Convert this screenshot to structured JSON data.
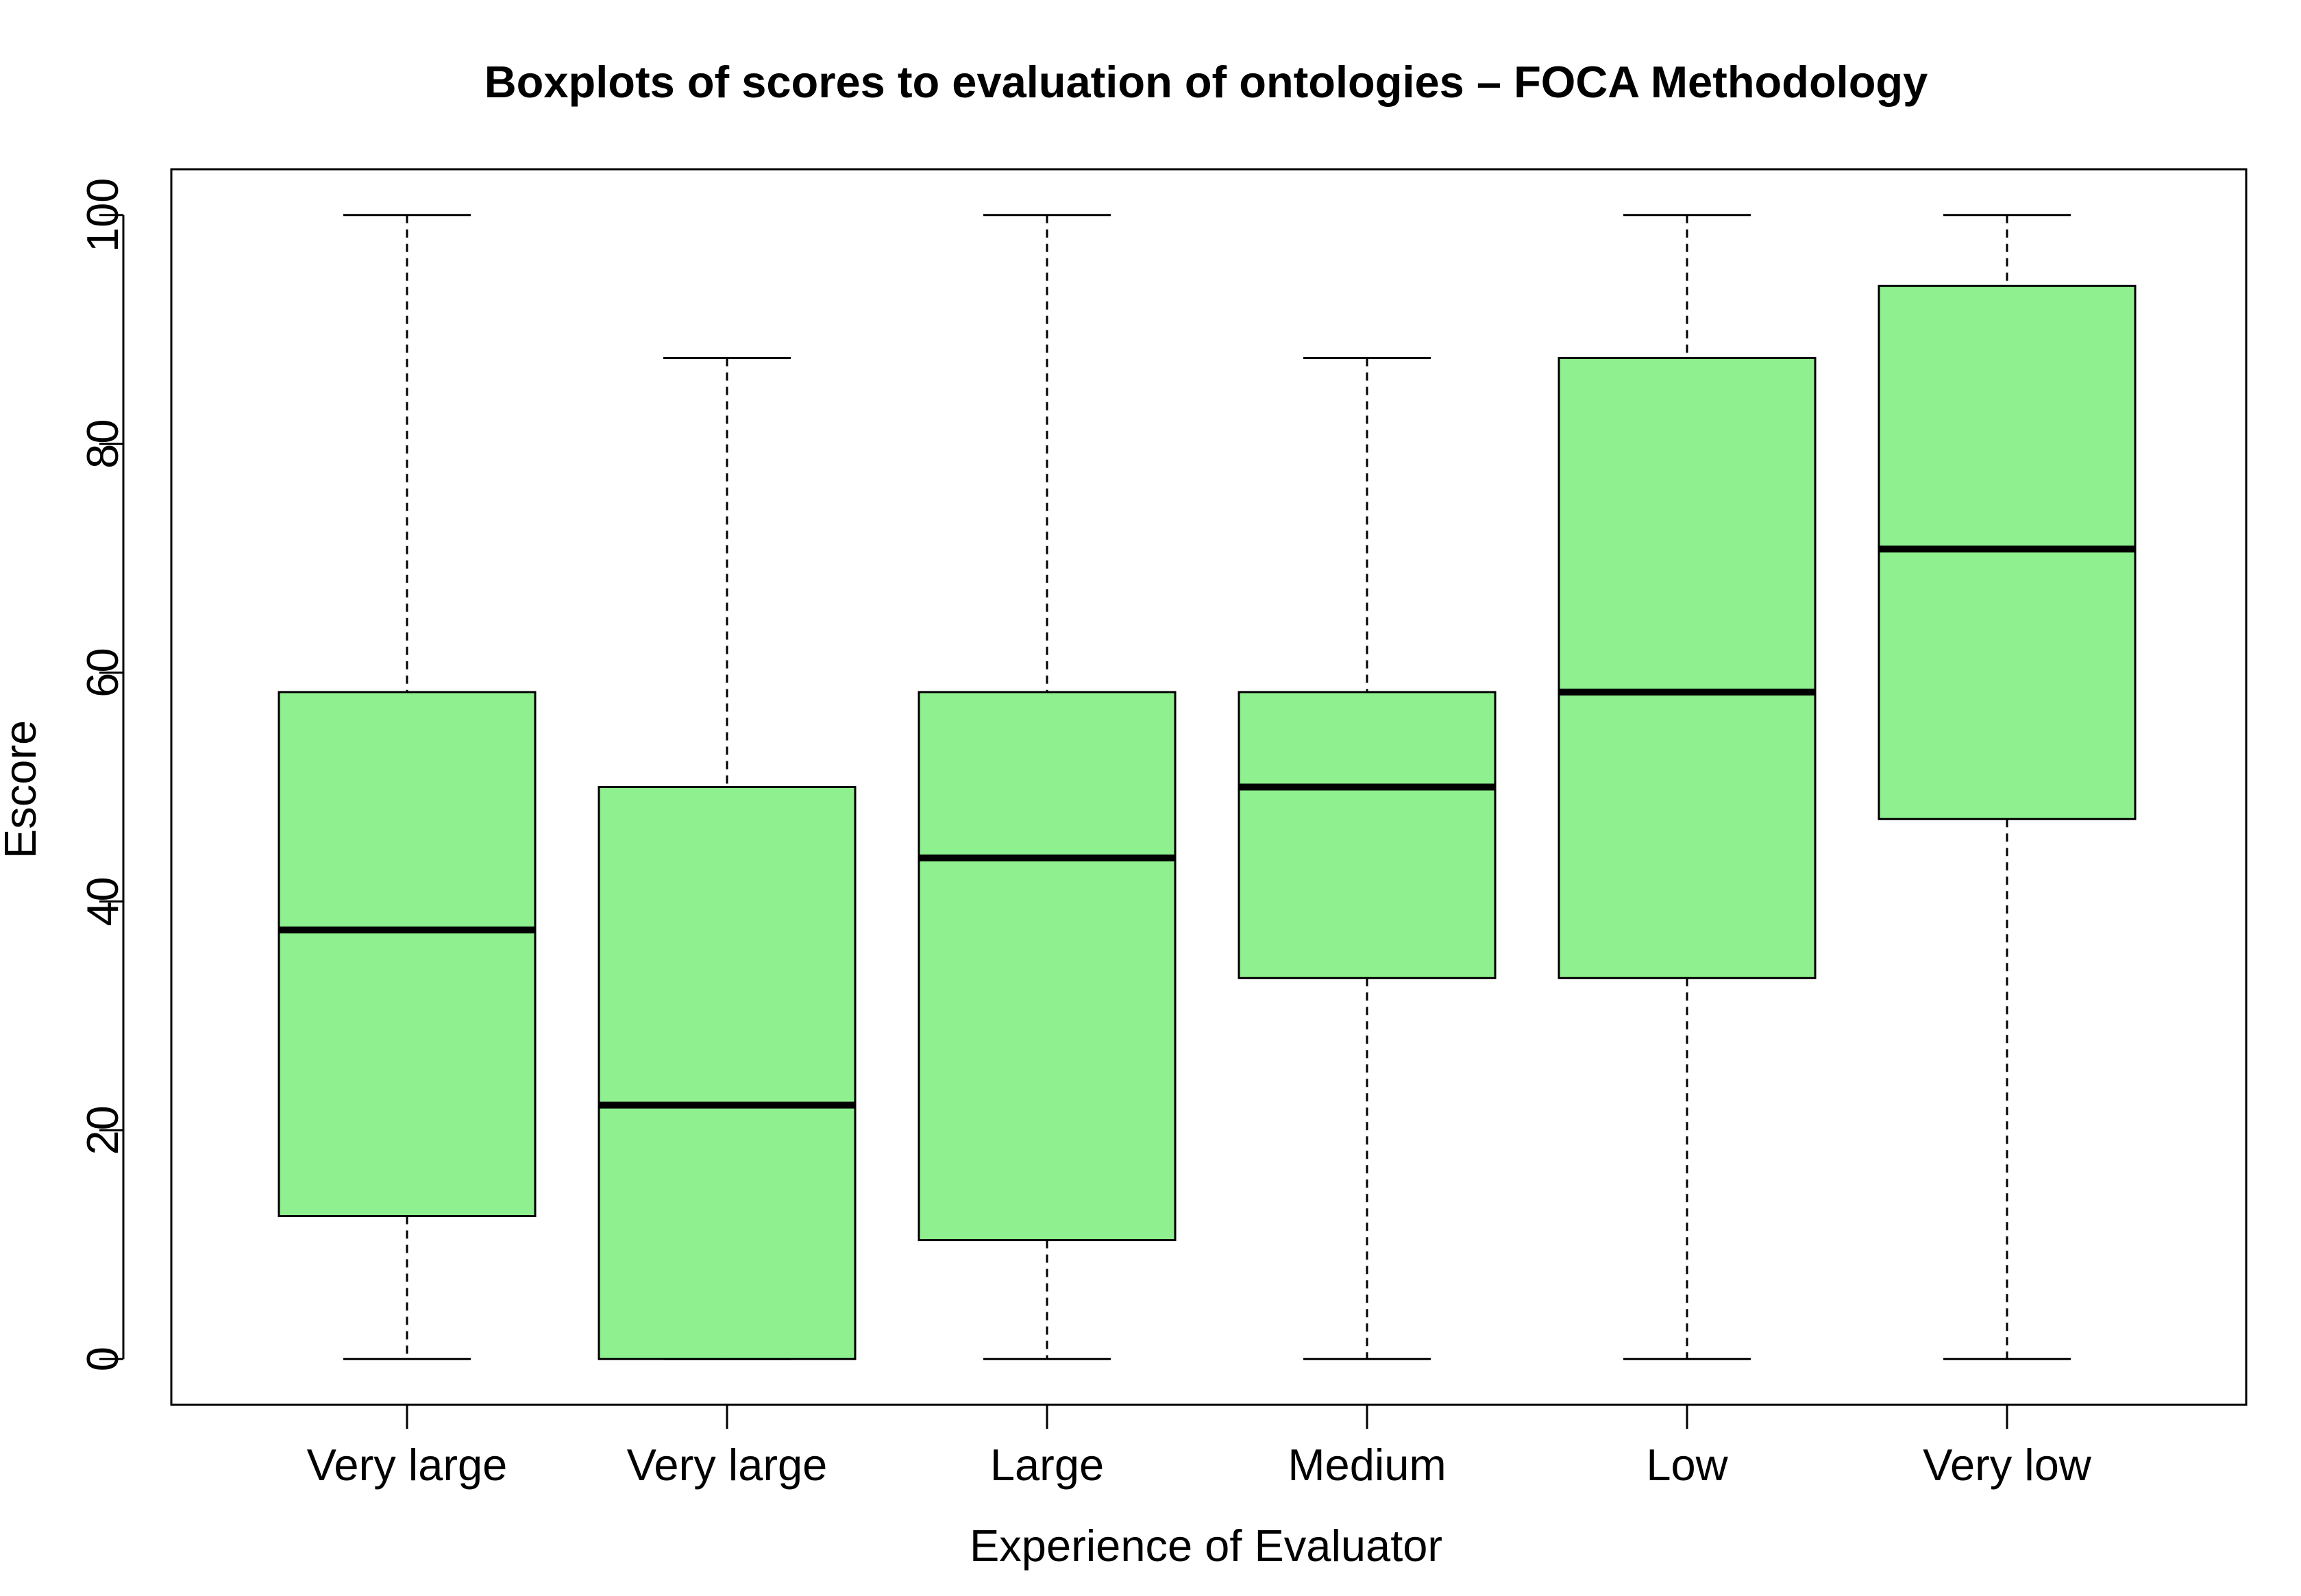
{
  "chart_data": {
    "type": "boxplot",
    "title": "Boxplots of scores to evaluation of ontologies – FOCA Methodology",
    "xlabel": "Experience of Evaluator",
    "ylabel": "Escore",
    "ylim": [
      -4,
      104
    ],
    "yticks": [
      0,
      20,
      40,
      60,
      80,
      100
    ],
    "grid": false,
    "categories": [
      "Very large",
      "Very large",
      "Large",
      "Medium",
      "Low",
      "Very low"
    ],
    "boxes": [
      {
        "min": 0,
        "q1": 12.5,
        "median": 37.5,
        "q3": 58.3,
        "max": 100
      },
      {
        "min": 0,
        "q1": 0,
        "median": 22.2,
        "q3": 50,
        "max": 87.5
      },
      {
        "min": 0,
        "q1": 10.4,
        "median": 43.8,
        "q3": 58.3,
        "max": 100
      },
      {
        "min": 0,
        "q1": 33.3,
        "median": 50,
        "q3": 58.3,
        "max": 87.5
      },
      {
        "min": 0,
        "q1": 33.3,
        "median": 58.3,
        "q3": 87.5,
        "max": 100
      },
      {
        "min": 0,
        "q1": 47.2,
        "median": 70.8,
        "q3": 93.8,
        "max": 100
      }
    ],
    "colors": {
      "box_fill": "#8ef08e",
      "line": "#000000"
    }
  }
}
